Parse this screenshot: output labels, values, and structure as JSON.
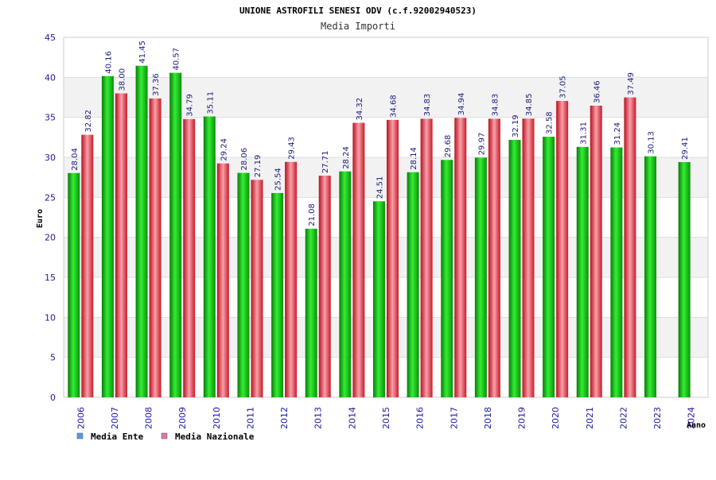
{
  "chart_data": {
    "type": "bar",
    "title": "UNIONE ASTROFILI SENESI ODV (c.f.92002940523)",
    "subtitle": "Media Importi",
    "xlabel": "Anno",
    "ylabel": "Euro",
    "ylim": [
      0,
      45
    ],
    "yticks": [
      0,
      5,
      10,
      15,
      20,
      25,
      30,
      35,
      40,
      45
    ],
    "grid": true,
    "legend_position": "bottom-left",
    "categories": [
      "2006",
      "2007",
      "2008",
      "2009",
      "2010",
      "2011",
      "2012",
      "2013",
      "2014",
      "2015",
      "2016",
      "2017",
      "2018",
      "2019",
      "2020",
      "2021",
      "2022",
      "2023",
      "2024"
    ],
    "series": [
      {
        "name": "Media Ente",
        "color": "#11aa11",
        "legend_color": "#5599ee",
        "values": [
          28.04,
          40.16,
          41.45,
          40.57,
          35.11,
          28.06,
          25.54,
          21.08,
          28.24,
          24.51,
          28.14,
          29.68,
          29.97,
          32.19,
          32.58,
          31.31,
          31.24,
          30.13,
          29.41
        ],
        "labels": [
          "28.04",
          "40.16",
          "41.45",
          "40.57",
          "35.11",
          "28.06",
          "25.54",
          "21.08",
          "28.24",
          "24.51",
          "28.14",
          "29.68",
          "29.97",
          "32.19",
          "32.58",
          "31.31",
          "31.24",
          "30.13",
          "29.41"
        ]
      },
      {
        "name": "Media Nazionale",
        "color": "#dd2233",
        "legend_color": "#dd77aa",
        "values": [
          32.82,
          38.0,
          37.36,
          34.79,
          29.24,
          27.19,
          29.43,
          27.71,
          34.32,
          34.68,
          34.83,
          34.94,
          34.83,
          34.85,
          37.05,
          36.46,
          37.49,
          null,
          null
        ],
        "labels": [
          "32.82",
          "38.00",
          "37.36",
          "34.79",
          "29.24",
          "27.19",
          "29.43",
          "27.71",
          "34.32",
          "34.68",
          "34.83",
          "34.94",
          "34.83",
          "34.85",
          "37.05",
          "36.46",
          "37.49",
          null,
          null
        ]
      }
    ]
  }
}
